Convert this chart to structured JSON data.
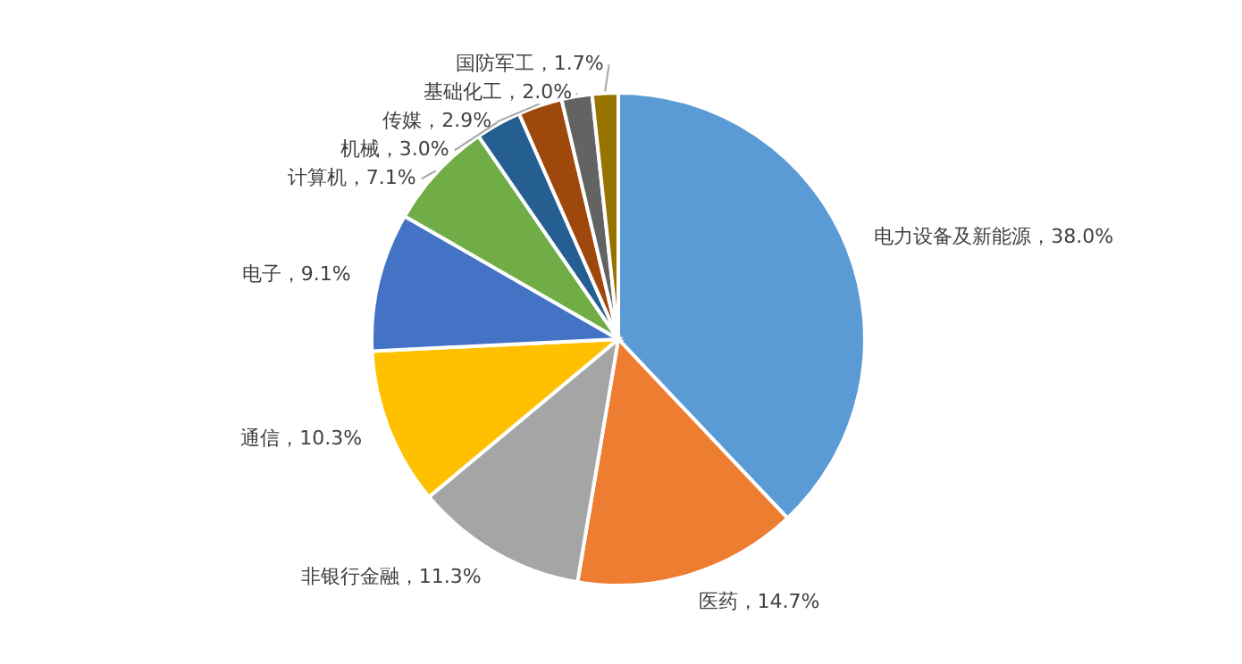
{
  "chart_data": {
    "type": "pie",
    "value_labels": [
      "，38.0%",
      "，14.7%",
      "，11.3%",
      "，10.3%",
      "，9.1%",
      "，7.1%",
      "，3.0%",
      "，2.9%",
      "，2.0%",
      "，1.7%"
    ],
    "categories": [
      "电力设备及新能源",
      "医药",
      "非银行金融",
      "通信",
      "电子",
      "计算机",
      "机械",
      "传媒",
      "基础化工",
      "国防军工"
    ],
    "values": [
      38.0,
      14.7,
      11.3,
      10.3,
      9.1,
      7.1,
      3.0,
      2.9,
      2.0,
      1.7
    ],
    "colors": [
      "#5b9bd5",
      "#ed7d31",
      "#a5a5a5",
      "#ffc000",
      "#4472c4",
      "#70ad47",
      "#255e91",
      "#9e480e",
      "#636363",
      "#997300"
    ]
  }
}
